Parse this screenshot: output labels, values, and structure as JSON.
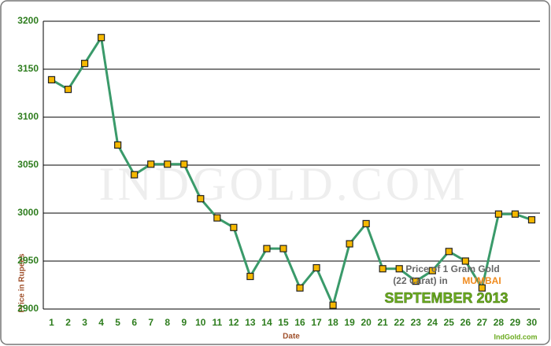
{
  "chart_data": {
    "type": "line",
    "x_label": "Date",
    "y_label": "Price in Rupees",
    "categories": [
      "1",
      "2",
      "3",
      "4",
      "5",
      "6",
      "7",
      "8",
      "9",
      "10",
      "11",
      "12",
      "13",
      "14",
      "15",
      "16",
      "17",
      "18",
      "19",
      "20",
      "21",
      "22",
      "23",
      "24",
      "25",
      "26",
      "27",
      "28",
      "29",
      "30"
    ],
    "series": [
      {
        "color": "#3a9a6a",
        "marker_color": "#f5b800",
        "values": [
          3139,
          3129,
          3156,
          3183,
          3071,
          3040,
          3051,
          3051,
          3051,
          3015,
          2995,
          2985,
          2934,
          2963,
          2963,
          2922,
          2943,
          2904,
          2968,
          2989,
          2942,
          2942,
          2929,
          2940,
          2960,
          2950,
          2922,
          2999,
          2999,
          2993
        ]
      }
    ],
    "ylim": [
      2900,
      3200
    ],
    "yticks": [
      2900,
      2950,
      3000,
      3050,
      3100,
      3150,
      3200
    ],
    "grid": true,
    "annotations": {
      "watermark": "INDGOLD.COM",
      "caption_line1": "Price of 1 Gram Gold",
      "caption_line2": "(22 Carat) in",
      "city": "MUMBAI",
      "month": "SEPTEMBER 2013",
      "source": "IndGold.com"
    }
  }
}
